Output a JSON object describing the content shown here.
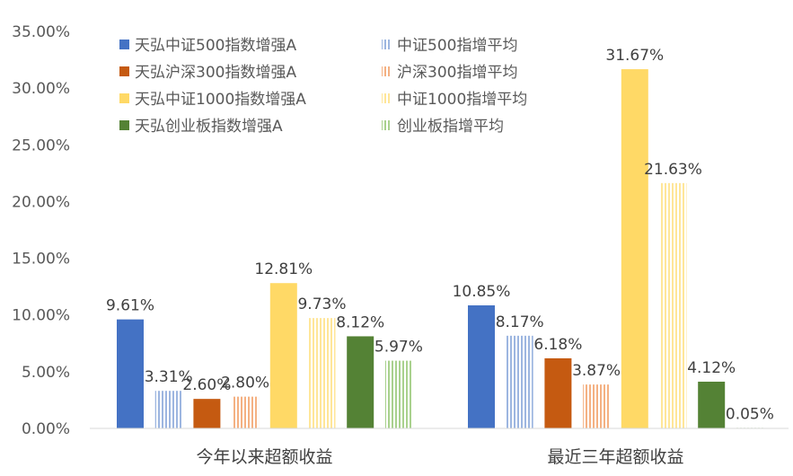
{
  "chart_data": {
    "type": "bar",
    "title": "",
    "xlabel": "",
    "ylabel": "",
    "ylim": [
      0,
      0.35
    ],
    "y_tick_labels": [
      "0.00%",
      "5.00%",
      "10.00%",
      "15.00%",
      "20.00%",
      "25.00%",
      "30.00%",
      "35.00%"
    ],
    "grid": false,
    "legend_position": "top-center, two columns",
    "categories": [
      "今年以来超额收益",
      "最近三年超额收益"
    ],
    "series": [
      {
        "name": "天弘中证500指数增强A",
        "values": [
          0.0961,
          0.1085
        ],
        "labels": [
          "9.61%",
          "10.85%"
        ],
        "color": "#4472C4",
        "pattern": "solid"
      },
      {
        "name": "中证500指增平均",
        "values": [
          0.0331,
          0.0817
        ],
        "labels": [
          "3.31%",
          "8.17%"
        ],
        "color": "#9DB6E0",
        "pattern": "striped"
      },
      {
        "name": "天弘沪深300指数增强A",
        "values": [
          0.026,
          0.0618
        ],
        "labels": [
          "2.60%",
          "6.18%"
        ],
        "color": "#C55A11",
        "pattern": "solid"
      },
      {
        "name": "沪深300指增平均",
        "values": [
          0.028,
          0.0387
        ],
        "labels": [
          "2.80%",
          "3.87%"
        ],
        "color": "#F4B183",
        "pattern": "striped"
      },
      {
        "name": "天弘中证1000指数增强A",
        "values": [
          0.1281,
          0.3167
        ],
        "labels": [
          "12.81%",
          "31.67%"
        ],
        "color": "#FFD966",
        "pattern": "solid"
      },
      {
        "name": "中证1000指增平均",
        "values": [
          0.0973,
          0.2163
        ],
        "labels": [
          "9.73%",
          "21.63%"
        ],
        "color": "#FFE699",
        "pattern": "striped"
      },
      {
        "name": "天弘创业板指数增强A",
        "values": [
          0.0812,
          0.0412
        ],
        "labels": [
          "8.12%",
          "4.12%"
        ],
        "color": "#548235",
        "pattern": "solid"
      },
      {
        "name": "创业板指增平均",
        "values": [
          0.0597,
          0.0005
        ],
        "labels": [
          "5.97%",
          "0.05%"
        ],
        "color": "#A9D18E",
        "pattern": "striped"
      }
    ]
  }
}
